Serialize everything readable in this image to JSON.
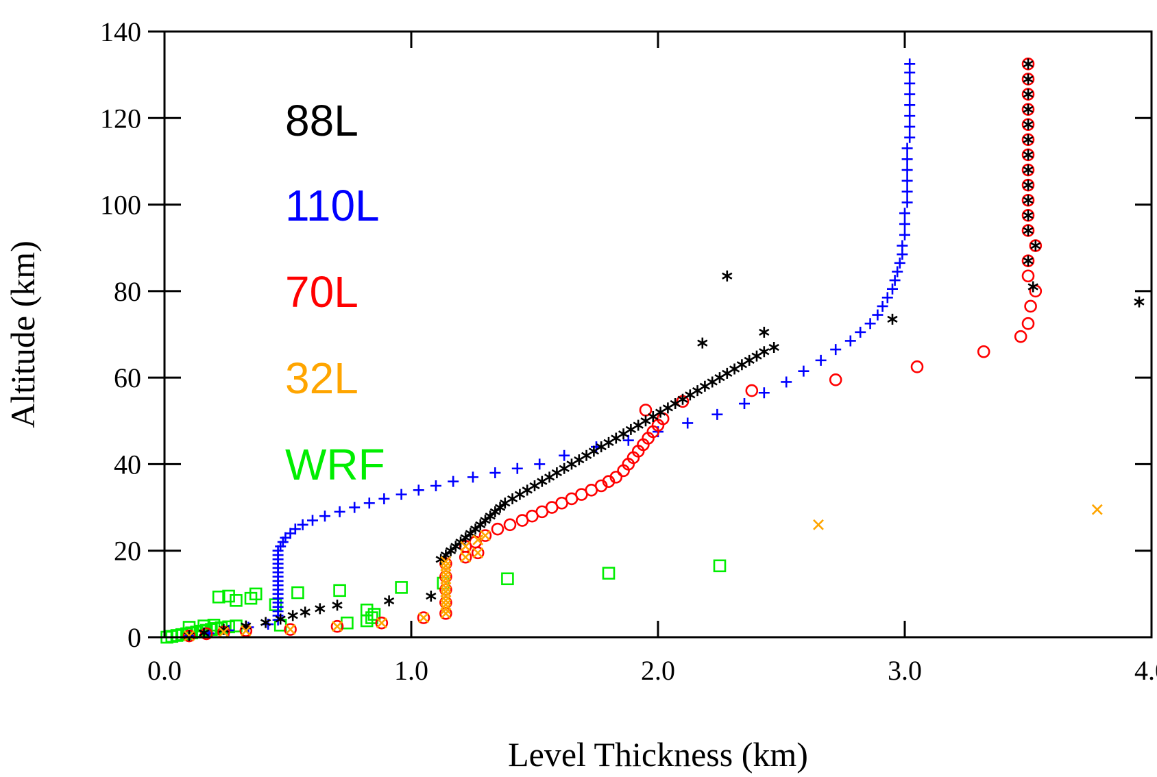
{
  "chart_data": {
    "type": "scatter",
    "title": "",
    "xlabel": "Level Thickness (km)",
    "ylabel": "Altitude (km)",
    "xlim": [
      0.0,
      4.0
    ],
    "ylim": [
      0,
      140
    ],
    "xticks": [
      0.0,
      1.0,
      2.0,
      3.0,
      4.0
    ],
    "xtick_labels": [
      "0.0",
      "1.0",
      "2.0",
      "3.0",
      "4.0"
    ],
    "yticks": [
      0,
      20,
      40,
      60,
      80,
      100,
      120,
      140
    ],
    "ytick_labels": [
      "0",
      "20",
      "40",
      "60",
      "80",
      "100",
      "120",
      "140"
    ],
    "grid": false,
    "legend_position": "top-left",
    "series": [
      {
        "name": "88L",
        "color": "#000000",
        "marker": "asterisk",
        "points": [
          [
            0.1,
            0.4
          ],
          [
            0.16,
            1.0
          ],
          [
            0.24,
            1.8
          ],
          [
            0.33,
            2.6
          ],
          [
            0.41,
            3.4
          ],
          [
            0.47,
            4.2
          ],
          [
            0.52,
            5.0
          ],
          [
            0.57,
            5.8
          ],
          [
            0.63,
            6.6
          ],
          [
            0.7,
            7.4
          ],
          [
            0.91,
            8.4
          ],
          [
            1.08,
            9.5
          ],
          [
            1.12,
            18.0
          ],
          [
            1.14,
            19.0
          ],
          [
            1.16,
            20.0
          ],
          [
            1.18,
            21.0
          ],
          [
            1.2,
            22.0
          ],
          [
            1.22,
            23.0
          ],
          [
            1.24,
            24.0
          ],
          [
            1.26,
            25.0
          ],
          [
            1.28,
            26.0
          ],
          [
            1.3,
            27.0
          ],
          [
            1.32,
            28.0
          ],
          [
            1.34,
            29.0
          ],
          [
            1.36,
            30.0
          ],
          [
            1.38,
            31.0
          ],
          [
            1.41,
            32.0
          ],
          [
            1.44,
            33.0
          ],
          [
            1.47,
            34.0
          ],
          [
            1.5,
            35.0
          ],
          [
            1.53,
            36.0
          ],
          [
            1.56,
            37.0
          ],
          [
            1.59,
            38.0
          ],
          [
            1.62,
            39.0
          ],
          [
            1.65,
            40.0
          ],
          [
            1.68,
            41.0
          ],
          [
            1.71,
            42.0
          ],
          [
            1.74,
            43.0
          ],
          [
            1.77,
            44.0
          ],
          [
            1.8,
            45.0
          ],
          [
            1.83,
            46.0
          ],
          [
            1.86,
            47.0
          ],
          [
            1.89,
            48.0
          ],
          [
            1.92,
            49.0
          ],
          [
            1.95,
            50.0
          ],
          [
            1.98,
            51.0
          ],
          [
            2.01,
            52.0
          ],
          [
            2.04,
            53.0
          ],
          [
            2.07,
            54.0
          ],
          [
            2.1,
            55.0
          ],
          [
            2.13,
            56.0
          ],
          [
            2.16,
            57.0
          ],
          [
            2.19,
            58.0
          ],
          [
            2.22,
            59.0
          ],
          [
            2.25,
            60.0
          ],
          [
            2.28,
            61.0
          ],
          [
            2.31,
            62.0
          ],
          [
            2.34,
            63.0
          ],
          [
            2.37,
            64.0
          ],
          [
            2.4,
            65.0
          ],
          [
            2.43,
            66.0
          ],
          [
            2.47,
            67.0
          ],
          [
            2.18,
            68.0
          ],
          [
            2.43,
            70.5
          ],
          [
            2.95,
            73.5
          ],
          [
            3.95,
            77.5
          ],
          [
            3.52,
            81.0
          ],
          [
            2.28,
            83.5
          ],
          [
            3.5,
            87.0
          ],
          [
            3.53,
            90.5
          ],
          [
            3.5,
            94.0
          ],
          [
            3.5,
            97.5
          ],
          [
            3.5,
            101.0
          ],
          [
            3.5,
            104.5
          ],
          [
            3.5,
            108.0
          ],
          [
            3.5,
            111.5
          ],
          [
            3.5,
            115.0
          ],
          [
            3.5,
            118.5
          ],
          [
            3.5,
            122.0
          ],
          [
            3.5,
            125.5
          ],
          [
            3.5,
            129.0
          ],
          [
            3.5,
            132.5
          ]
        ]
      },
      {
        "name": "110L",
        "color": "#0000ff",
        "marker": "plus",
        "points": [
          [
            0.1,
            0.3
          ],
          [
            0.18,
            0.9
          ],
          [
            0.26,
            1.6
          ],
          [
            0.34,
            2.3
          ],
          [
            0.42,
            3.0
          ],
          [
            0.46,
            4.0
          ],
          [
            0.46,
            5.0
          ],
          [
            0.46,
            6.0
          ],
          [
            0.46,
            7.0
          ],
          [
            0.46,
            8.0
          ],
          [
            0.46,
            9.0
          ],
          [
            0.46,
            10.0
          ],
          [
            0.46,
            11.0
          ],
          [
            0.46,
            12.0
          ],
          [
            0.46,
            13.0
          ],
          [
            0.46,
            14.0
          ],
          [
            0.46,
            15.0
          ],
          [
            0.46,
            16.0
          ],
          [
            0.46,
            17.0
          ],
          [
            0.46,
            18.0
          ],
          [
            0.46,
            19.0
          ],
          [
            0.46,
            20.0
          ],
          [
            0.47,
            21.0
          ],
          [
            0.48,
            22.0
          ],
          [
            0.49,
            23.0
          ],
          [
            0.51,
            24.0
          ],
          [
            0.53,
            25.0
          ],
          [
            0.56,
            26.0
          ],
          [
            0.6,
            27.0
          ],
          [
            0.65,
            28.0
          ],
          [
            0.71,
            29.0
          ],
          [
            0.77,
            30.0
          ],
          [
            0.83,
            31.0
          ],
          [
            0.89,
            32.0
          ],
          [
            0.96,
            33.0
          ],
          [
            1.03,
            34.0
          ],
          [
            1.1,
            35.0
          ],
          [
            1.17,
            36.0
          ],
          [
            1.25,
            37.0
          ],
          [
            1.34,
            38.0
          ],
          [
            1.43,
            39.0
          ],
          [
            1.52,
            40.0
          ],
          [
            1.62,
            42.0
          ],
          [
            1.75,
            44.0
          ],
          [
            1.88,
            45.5
          ],
          [
            2.0,
            47.5
          ],
          [
            2.12,
            49.5
          ],
          [
            2.24,
            51.5
          ],
          [
            2.35,
            54.0
          ],
          [
            2.43,
            56.5
          ],
          [
            2.52,
            59.0
          ],
          [
            2.59,
            61.5
          ],
          [
            2.66,
            64.0
          ],
          [
            2.72,
            66.5
          ],
          [
            2.78,
            68.5
          ],
          [
            2.82,
            70.5
          ],
          [
            2.86,
            72.5
          ],
          [
            2.89,
            74.5
          ],
          [
            2.91,
            76.5
          ],
          [
            2.93,
            78.5
          ],
          [
            2.95,
            80.5
          ],
          [
            2.96,
            82.5
          ],
          [
            2.97,
            84.5
          ],
          [
            2.98,
            86.5
          ],
          [
            2.99,
            88.5
          ],
          [
            2.99,
            90.5
          ],
          [
            3.0,
            93.0
          ],
          [
            3.0,
            95.5
          ],
          [
            3.0,
            98.0
          ],
          [
            3.01,
            100.5
          ],
          [
            3.01,
            103.0
          ],
          [
            3.01,
            105.5
          ],
          [
            3.01,
            108.0
          ],
          [
            3.01,
            110.5
          ],
          [
            3.01,
            113.0
          ],
          [
            3.02,
            115.5
          ],
          [
            3.02,
            118.0
          ],
          [
            3.02,
            120.5
          ],
          [
            3.02,
            123.0
          ],
          [
            3.02,
            125.5
          ],
          [
            3.02,
            128.0
          ],
          [
            3.02,
            130.5
          ],
          [
            3.02,
            132.5
          ]
        ]
      },
      {
        "name": "70L",
        "color": "#ff0000",
        "marker": "circle",
        "points": [
          [
            0.1,
            0.3
          ],
          [
            0.17,
            0.8
          ],
          [
            0.24,
            1.2
          ],
          [
            0.33,
            1.5
          ],
          [
            0.51,
            1.8
          ],
          [
            0.7,
            2.5
          ],
          [
            0.88,
            3.3
          ],
          [
            1.05,
            4.5
          ],
          [
            1.14,
            5.5
          ],
          [
            1.14,
            8.0
          ],
          [
            1.14,
            11.0
          ],
          [
            1.14,
            14.0
          ],
          [
            1.14,
            17.0
          ],
          [
            1.22,
            18.5
          ],
          [
            1.27,
            19.5
          ],
          [
            1.22,
            21.0
          ],
          [
            1.26,
            22.0
          ],
          [
            1.3,
            23.5
          ],
          [
            1.35,
            25.0
          ],
          [
            1.4,
            26.0
          ],
          [
            1.45,
            27.0
          ],
          [
            1.49,
            28.0
          ],
          [
            1.53,
            29.0
          ],
          [
            1.57,
            30.0
          ],
          [
            1.61,
            31.0
          ],
          [
            1.65,
            32.0
          ],
          [
            1.69,
            33.0
          ],
          [
            1.73,
            34.0
          ],
          [
            1.77,
            35.0
          ],
          [
            1.8,
            36.0
          ],
          [
            1.83,
            37.0
          ],
          [
            1.86,
            38.5
          ],
          [
            1.88,
            40.0
          ],
          [
            1.9,
            41.5
          ],
          [
            1.92,
            43.0
          ],
          [
            1.94,
            44.5
          ],
          [
            1.96,
            46.0
          ],
          [
            1.98,
            47.5
          ],
          [
            2.0,
            49.0
          ],
          [
            2.02,
            50.5
          ],
          [
            1.95,
            52.5
          ],
          [
            2.1,
            54.5
          ],
          [
            2.38,
            57.0
          ],
          [
            2.72,
            59.5
          ],
          [
            3.05,
            62.5
          ],
          [
            3.32,
            66.0
          ],
          [
            3.47,
            69.5
          ],
          [
            3.5,
            72.5
          ],
          [
            3.51,
            76.5
          ],
          [
            3.53,
            80.0
          ],
          [
            3.5,
            83.5
          ],
          [
            3.5,
            87.0
          ],
          [
            3.53,
            90.5
          ],
          [
            3.5,
            94.0
          ],
          [
            3.5,
            97.5
          ],
          [
            3.5,
            101.0
          ],
          [
            3.5,
            104.5
          ],
          [
            3.5,
            108.0
          ],
          [
            3.5,
            111.5
          ],
          [
            3.5,
            115.0
          ],
          [
            3.5,
            118.5
          ],
          [
            3.5,
            122.0
          ],
          [
            3.5,
            125.5
          ],
          [
            3.5,
            129.0
          ],
          [
            3.5,
            132.5
          ]
        ]
      },
      {
        "name": "32L",
        "color": "#ffa500",
        "marker": "cross",
        "points": [
          [
            0.1,
            0.3
          ],
          [
            0.24,
            1.2
          ],
          [
            0.33,
            1.5
          ],
          [
            0.51,
            1.8
          ],
          [
            0.7,
            2.5
          ],
          [
            0.88,
            3.3
          ],
          [
            1.05,
            4.5
          ],
          [
            1.14,
            5.5
          ],
          [
            1.14,
            6.5
          ],
          [
            1.14,
            7.5
          ],
          [
            1.14,
            8.5
          ],
          [
            1.14,
            9.5
          ],
          [
            1.14,
            10.5
          ],
          [
            1.14,
            11.5
          ],
          [
            1.14,
            12.5
          ],
          [
            1.14,
            13.5
          ],
          [
            1.14,
            14.5
          ],
          [
            1.14,
            15.5
          ],
          [
            1.14,
            16.5
          ],
          [
            1.14,
            17.5
          ],
          [
            1.22,
            18.5
          ],
          [
            1.27,
            19.5
          ],
          [
            1.22,
            21.0
          ],
          [
            1.27,
            22.5
          ],
          [
            1.3,
            23.5
          ],
          [
            2.65,
            26.0
          ],
          [
            3.78,
            29.5
          ]
        ]
      },
      {
        "name": "WRF",
        "color": "#00ee00",
        "marker": "square",
        "points": [
          [
            0.01,
            0.0
          ],
          [
            0.03,
            0.2
          ],
          [
            0.05,
            0.4
          ],
          [
            0.07,
            0.6
          ],
          [
            0.09,
            0.8
          ],
          [
            0.11,
            1.0
          ],
          [
            0.13,
            1.2
          ],
          [
            0.15,
            1.4
          ],
          [
            0.17,
            1.6
          ],
          [
            0.19,
            1.8
          ],
          [
            0.21,
            2.0
          ],
          [
            0.23,
            2.2
          ],
          [
            0.26,
            2.4
          ],
          [
            0.29,
            2.6
          ],
          [
            0.1,
            2.3
          ],
          [
            0.16,
            2.6
          ],
          [
            0.2,
            2.8
          ],
          [
            0.47,
            2.8
          ],
          [
            0.74,
            3.3
          ],
          [
            0.82,
            3.8
          ],
          [
            0.84,
            4.5
          ],
          [
            0.85,
            5.3
          ],
          [
            0.82,
            6.3
          ],
          [
            0.45,
            7.5
          ],
          [
            0.29,
            8.5
          ],
          [
            0.35,
            9.0
          ],
          [
            0.22,
            9.3
          ],
          [
            0.26,
            9.5
          ],
          [
            0.37,
            10.0
          ],
          [
            0.54,
            10.3
          ],
          [
            0.71,
            10.8
          ],
          [
            0.96,
            11.5
          ],
          [
            1.13,
            12.5
          ],
          [
            1.39,
            13.5
          ],
          [
            1.8,
            14.8
          ],
          [
            2.25,
            16.5
          ]
        ]
      }
    ]
  },
  "legend": {
    "items": [
      {
        "label": "88L",
        "color": "#000000"
      },
      {
        "label": "110L",
        "color": "#0000ff"
      },
      {
        "label": "70L",
        "color": "#ff0000"
      },
      {
        "label": "32L",
        "color": "#ffa500"
      },
      {
        "label": "WRF",
        "color": "#00ee00"
      }
    ]
  }
}
